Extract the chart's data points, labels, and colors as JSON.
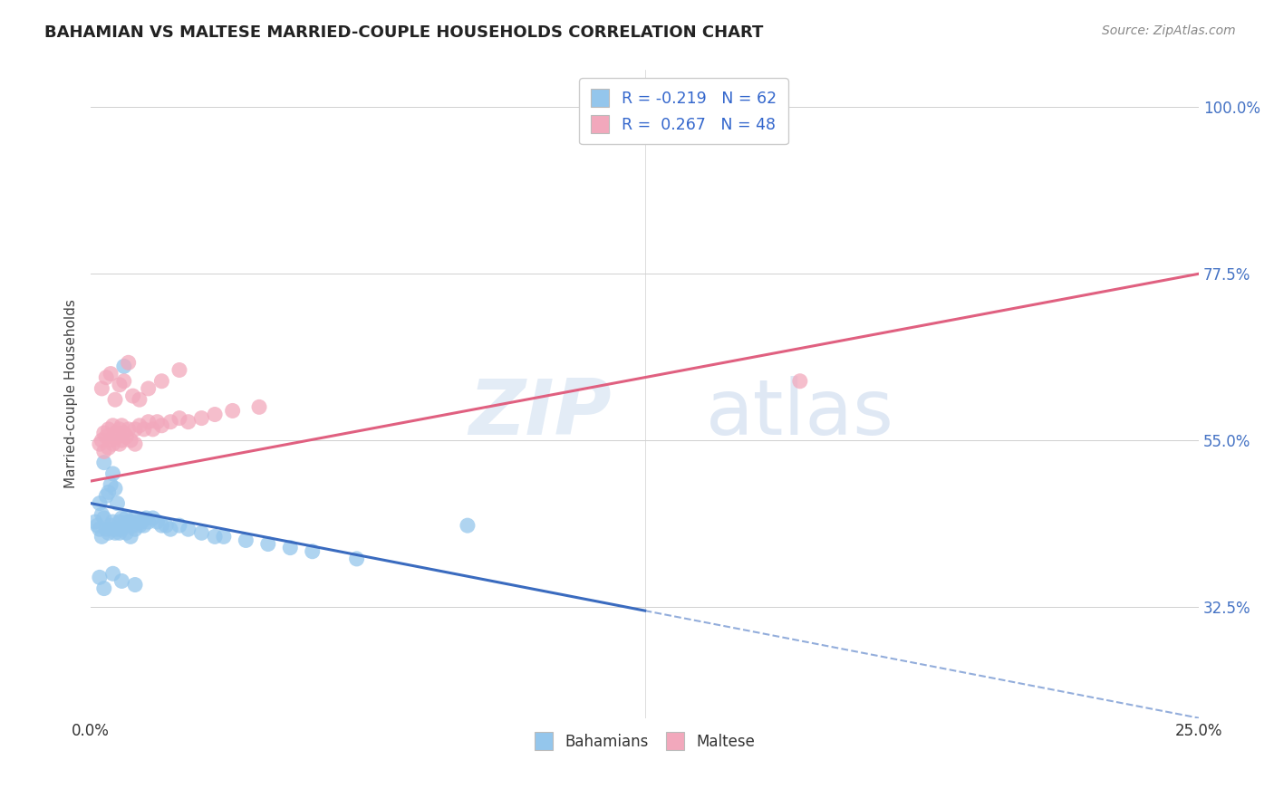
{
  "title": "BAHAMIAN VS MALTESE MARRIED-COUPLE HOUSEHOLDS CORRELATION CHART",
  "source": "Source: ZipAtlas.com",
  "ylabel": "Married-couple Households",
  "xlim": [
    0.0,
    25.0
  ],
  "ylim": [
    17.5,
    105.0
  ],
  "ytick_positions": [
    32.5,
    55.0,
    77.5,
    100.0
  ],
  "ytick_labels": [
    "32.5%",
    "55.0%",
    "77.5%",
    "100.0%"
  ],
  "grid_color": "#d0d0d0",
  "background_color": "#ffffff",
  "blue_color": "#94C6EC",
  "pink_color": "#F2A8BC",
  "trend_blue": "#3A6BBF",
  "trend_pink": "#E06080",
  "watermark_zip": "ZIP",
  "watermark_atlas": "atlas",
  "blue_label": "Bahamians",
  "pink_label": "Maltese",
  "legend_line1": "R = -0.219   N = 62",
  "legend_line2": "R =  0.267   N = 48",
  "blue_trend_x0": 0.0,
  "blue_trend_y0": 46.5,
  "blue_trend_x1": 12.5,
  "blue_trend_y1": 32.0,
  "blue_solid_end": 12.5,
  "blue_dashed_end": 25.0,
  "pink_trend_x0": 0.0,
  "pink_trend_y0": 49.5,
  "pink_trend_x1": 25.0,
  "pink_trend_y1": 77.5,
  "bah_x": [
    0.1,
    0.15,
    0.2,
    0.2,
    0.25,
    0.25,
    0.3,
    0.3,
    0.35,
    0.35,
    0.4,
    0.4,
    0.45,
    0.45,
    0.5,
    0.5,
    0.5,
    0.55,
    0.55,
    0.6,
    0.6,
    0.65,
    0.65,
    0.7,
    0.7,
    0.75,
    0.75,
    0.8,
    0.8,
    0.85,
    0.9,
    0.9,
    0.95,
    1.0,
    1.0,
    1.05,
    1.1,
    1.15,
    1.2,
    1.25,
    1.3,
    1.4,
    1.5,
    1.6,
    1.7,
    1.8,
    2.0,
    2.2,
    2.5,
    2.8,
    3.0,
    3.5,
    4.0,
    4.5,
    5.0,
    6.0,
    8.5,
    0.2,
    0.3,
    0.5,
    0.7,
    1.0
  ],
  "bah_y": [
    44.0,
    43.5,
    43.0,
    46.5,
    42.0,
    45.0,
    44.5,
    52.0,
    43.0,
    47.5,
    42.5,
    48.0,
    43.5,
    49.0,
    44.0,
    43.0,
    50.5,
    42.5,
    48.5,
    43.0,
    46.5,
    44.0,
    42.5,
    44.5,
    43.0,
    65.0,
    43.5,
    44.5,
    42.5,
    44.0,
    44.0,
    42.0,
    43.5,
    44.5,
    43.0,
    44.0,
    43.5,
    44.0,
    43.5,
    44.5,
    44.0,
    44.5,
    44.0,
    43.5,
    43.5,
    43.0,
    43.5,
    43.0,
    42.5,
    42.0,
    42.0,
    41.5,
    41.0,
    40.5,
    40.0,
    39.0,
    43.5,
    36.5,
    35.0,
    37.0,
    36.0,
    35.5
  ],
  "mal_x": [
    0.2,
    0.25,
    0.3,
    0.3,
    0.35,
    0.4,
    0.4,
    0.45,
    0.5,
    0.5,
    0.55,
    0.6,
    0.65,
    0.65,
    0.7,
    0.7,
    0.75,
    0.8,
    0.85,
    0.9,
    1.0,
    1.0,
    1.1,
    1.2,
    1.3,
    1.4,
    1.5,
    1.6,
    1.8,
    2.0,
    2.2,
    2.5,
    2.8,
    3.2,
    3.8,
    0.25,
    0.35,
    0.45,
    0.55,
    0.65,
    0.75,
    0.85,
    0.95,
    1.1,
    1.3,
    1.6,
    2.0,
    16.0
  ],
  "mal_y": [
    54.5,
    55.0,
    53.5,
    56.0,
    55.5,
    54.0,
    56.5,
    55.0,
    54.5,
    57.0,
    56.0,
    55.5,
    54.5,
    56.5,
    55.0,
    57.0,
    56.0,
    55.5,
    56.5,
    55.0,
    56.5,
    54.5,
    57.0,
    56.5,
    57.5,
    56.5,
    57.5,
    57.0,
    57.5,
    58.0,
    57.5,
    58.0,
    58.5,
    59.0,
    59.5,
    62.0,
    63.5,
    64.0,
    60.5,
    62.5,
    63.0,
    65.5,
    61.0,
    60.5,
    62.0,
    63.0,
    64.5,
    63.0
  ]
}
